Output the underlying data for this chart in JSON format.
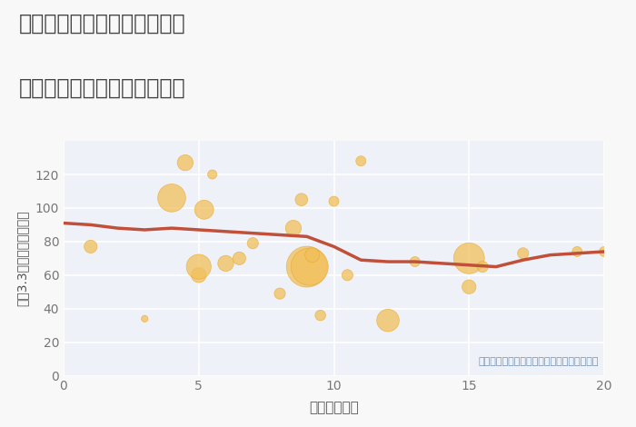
{
  "title_line1": "神奈川県横須賀市衣笠栄町の",
  "title_line2": "駅距離別中古マンション価格",
  "xlabel": "駅距離（分）",
  "ylabel": "坪（3.3㎡）単価（万円）",
  "background_color": "#f8f8f8",
  "plot_bg_color": "#eef2f8",
  "grid_color": "#ffffff",
  "bubble_color": "#f2c05a",
  "bubble_alpha": 0.75,
  "bubble_edge_color": "#e8a830",
  "line_color": "#c0503a",
  "line_width": 2.5,
  "xlim": [
    0,
    20
  ],
  "ylim": [
    0,
    140
  ],
  "yticks": [
    0,
    20,
    40,
    60,
    80,
    100,
    120
  ],
  "xticks": [
    0,
    5,
    10,
    15,
    20
  ],
  "annotation": "円の大きさは、取引のあった物件面積を示す",
  "scatter_x": [
    1,
    3,
    4,
    4.5,
    5,
    5,
    5.2,
    5.5,
    6,
    6.5,
    7,
    8,
    8.5,
    8.8,
    9,
    9.1,
    9.2,
    9.5,
    10,
    10.5,
    11,
    12,
    13,
    15,
    15,
    15.5,
    17,
    19,
    20
  ],
  "scatter_y": [
    77,
    34,
    106,
    127,
    60,
    65,
    99,
    120,
    67,
    70,
    79,
    49,
    88,
    105,
    65,
    65,
    72,
    36,
    104,
    60,
    128,
    33,
    68,
    70,
    53,
    65,
    73,
    74,
    74
  ],
  "scatter_size": [
    30,
    8,
    140,
    45,
    40,
    110,
    65,
    15,
    45,
    30,
    22,
    22,
    45,
    28,
    300,
    250,
    38,
    20,
    18,
    22,
    18,
    90,
    18,
    170,
    35,
    22,
    22,
    18,
    18
  ],
  "line_x": [
    0,
    1,
    2,
    3,
    4,
    5,
    6,
    7,
    8,
    9,
    9.5,
    10,
    11,
    12,
    13,
    14,
    15,
    16,
    17,
    18,
    19,
    20
  ],
  "line_y": [
    91,
    90,
    88,
    87,
    88,
    87,
    86,
    85,
    84,
    83,
    80,
    77,
    69,
    68,
    68,
    67,
    66,
    65,
    69,
    72,
    73,
    74
  ]
}
